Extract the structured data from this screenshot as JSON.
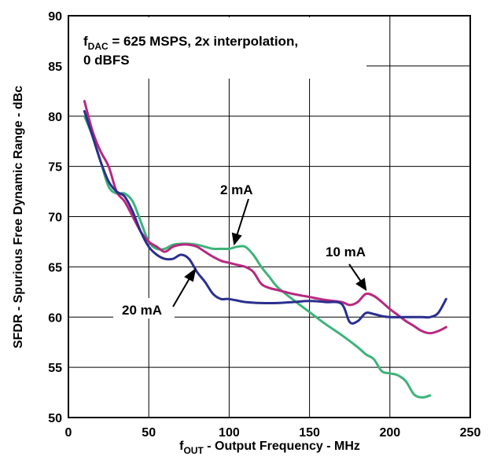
{
  "chart_data": {
    "type": "line",
    "xlabel": {
      "main": "f",
      "sub": "OUT",
      "rest": " - Output Frequency - MHz"
    },
    "ylabel": "SFDR - Spurious Free Dynamic Range - dBc",
    "xlim": [
      0,
      250
    ],
    "ylim": [
      50,
      90
    ],
    "xticks": [
      0,
      50,
      100,
      150,
      200,
      250
    ],
    "yticks": [
      50,
      55,
      60,
      65,
      70,
      75,
      80,
      85,
      90
    ],
    "grid": true,
    "annotation": {
      "line1_pre": "f",
      "line1_sub": "DAC",
      "line1_post": " = 625 MSPS, 2x interpolation,",
      "line2": "0 dBFS"
    },
    "series": [
      {
        "name": "2 mA",
        "color": "#3db37a",
        "x": [
          10,
          15,
          20,
          25,
          30,
          35,
          40,
          45,
          50,
          55,
          60,
          65,
          70,
          75,
          80,
          85,
          90,
          95,
          100,
          105,
          110,
          115,
          120,
          125,
          130,
          140,
          150,
          160,
          170,
          180,
          185,
          190,
          195,
          200,
          205,
          210,
          215,
          220,
          225
        ],
        "y": [
          80,
          78,
          75.5,
          73,
          72.3,
          72.3,
          71.5,
          69.5,
          67.5,
          66.8,
          66.8,
          67.2,
          67.3,
          67.3,
          67.2,
          67,
          66.8,
          66.8,
          66.8,
          67,
          67,
          66.2,
          65,
          64,
          63,
          61.7,
          60.5,
          59.3,
          58.2,
          57,
          56.3,
          55.8,
          54.6,
          54.4,
          54.2,
          53.6,
          52.3,
          52,
          52.2
        ]
      },
      {
        "name": "10 mA",
        "color": "#b8287e",
        "x": [
          10,
          15,
          20,
          25,
          30,
          35,
          40,
          45,
          50,
          55,
          60,
          65,
          70,
          75,
          80,
          85,
          90,
          95,
          100,
          105,
          110,
          115,
          120,
          125,
          130,
          140,
          150,
          160,
          170,
          175,
          180,
          185,
          190,
          195,
          200,
          205,
          210,
          215,
          220,
          225,
          230,
          235
        ],
        "y": [
          81.5,
          78.5,
          76.5,
          75,
          72.5,
          71.5,
          70,
          68.5,
          67.5,
          67,
          66.5,
          67,
          67.2,
          67.2,
          67,
          66.5,
          66,
          65.6,
          65.4,
          65.2,
          65,
          64.5,
          63.3,
          62.9,
          62.7,
          62.3,
          62,
          61.7,
          61.5,
          61.2,
          61.5,
          62.3,
          62.1,
          61.5,
          60.8,
          60.2,
          59.6,
          59.1,
          58.6,
          58.4,
          58.6,
          59
        ]
      },
      {
        "name": "20 mA",
        "color": "#2b2f8f",
        "x": [
          10,
          15,
          20,
          25,
          30,
          35,
          40,
          45,
          50,
          55,
          60,
          65,
          70,
          75,
          80,
          85,
          90,
          95,
          100,
          110,
          120,
          130,
          140,
          150,
          160,
          170,
          175,
          180,
          185,
          190,
          195,
          200,
          210,
          220,
          225,
          230,
          235
        ],
        "y": [
          80.5,
          78,
          75.5,
          73.5,
          72.5,
          72,
          70.5,
          68.5,
          67,
          66.2,
          65.8,
          65.8,
          66.2,
          65.8,
          64.5,
          63.5,
          62.3,
          61.8,
          61.8,
          61.5,
          61.4,
          61.4,
          61.5,
          61.6,
          61.5,
          61.3,
          59.5,
          59.6,
          60.4,
          60.3,
          60.1,
          60,
          60,
          60,
          60,
          60.4,
          61.8
        ]
      }
    ],
    "labels": {
      "2ma": "2 mA",
      "10ma": "10 mA",
      "20ma": "20 mA"
    }
  }
}
